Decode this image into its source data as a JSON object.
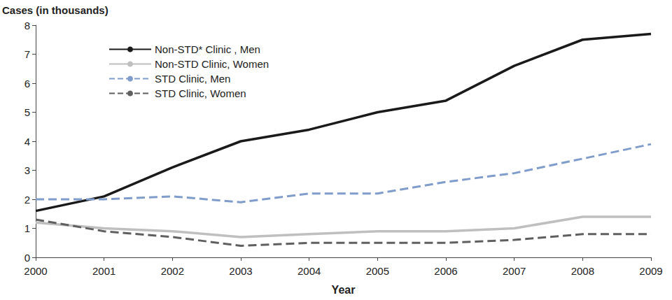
{
  "chart_data": {
    "type": "line",
    "x_label": "Year",
    "y_label": "Cases (in thousands)",
    "categories": [
      "2000",
      "2001",
      "2002",
      "2003",
      "2004",
      "2005",
      "2006",
      "2007",
      "2008",
      "2009"
    ],
    "series": [
      {
        "name": "Non-STD* Clinic , Men",
        "color": "#1a1a1a",
        "line_style": "solid",
        "values": [
          1.6,
          2.1,
          3.1,
          4.0,
          4.4,
          5.0,
          5.4,
          6.6,
          7.5,
          7.7
        ]
      },
      {
        "name": "Non-STD Clinic, Women",
        "color": "#bfbfbf",
        "line_style": "solid",
        "values": [
          1.2,
          1.0,
          0.9,
          0.7,
          0.8,
          0.9,
          0.9,
          1.0,
          1.4,
          1.4
        ]
      },
      {
        "name": "STD Clinic, Men",
        "color": "#7f9ccb",
        "line_style": "dashed",
        "values": [
          2.0,
          2.0,
          2.1,
          1.9,
          2.2,
          2.2,
          2.6,
          2.9,
          3.4,
          3.9
        ]
      },
      {
        "name": "STD Clinic, Women",
        "color": "#5f5f5f",
        "line_style": "dashed",
        "values": [
          1.3,
          0.9,
          0.7,
          0.4,
          0.5,
          0.5,
          0.5,
          0.6,
          0.8,
          0.8
        ]
      }
    ],
    "ylim": [
      0,
      8
    ],
    "yticks": [
      0,
      1,
      2,
      3,
      4,
      5,
      6,
      7,
      8
    ],
    "grid": false,
    "legend": "upper left"
  }
}
